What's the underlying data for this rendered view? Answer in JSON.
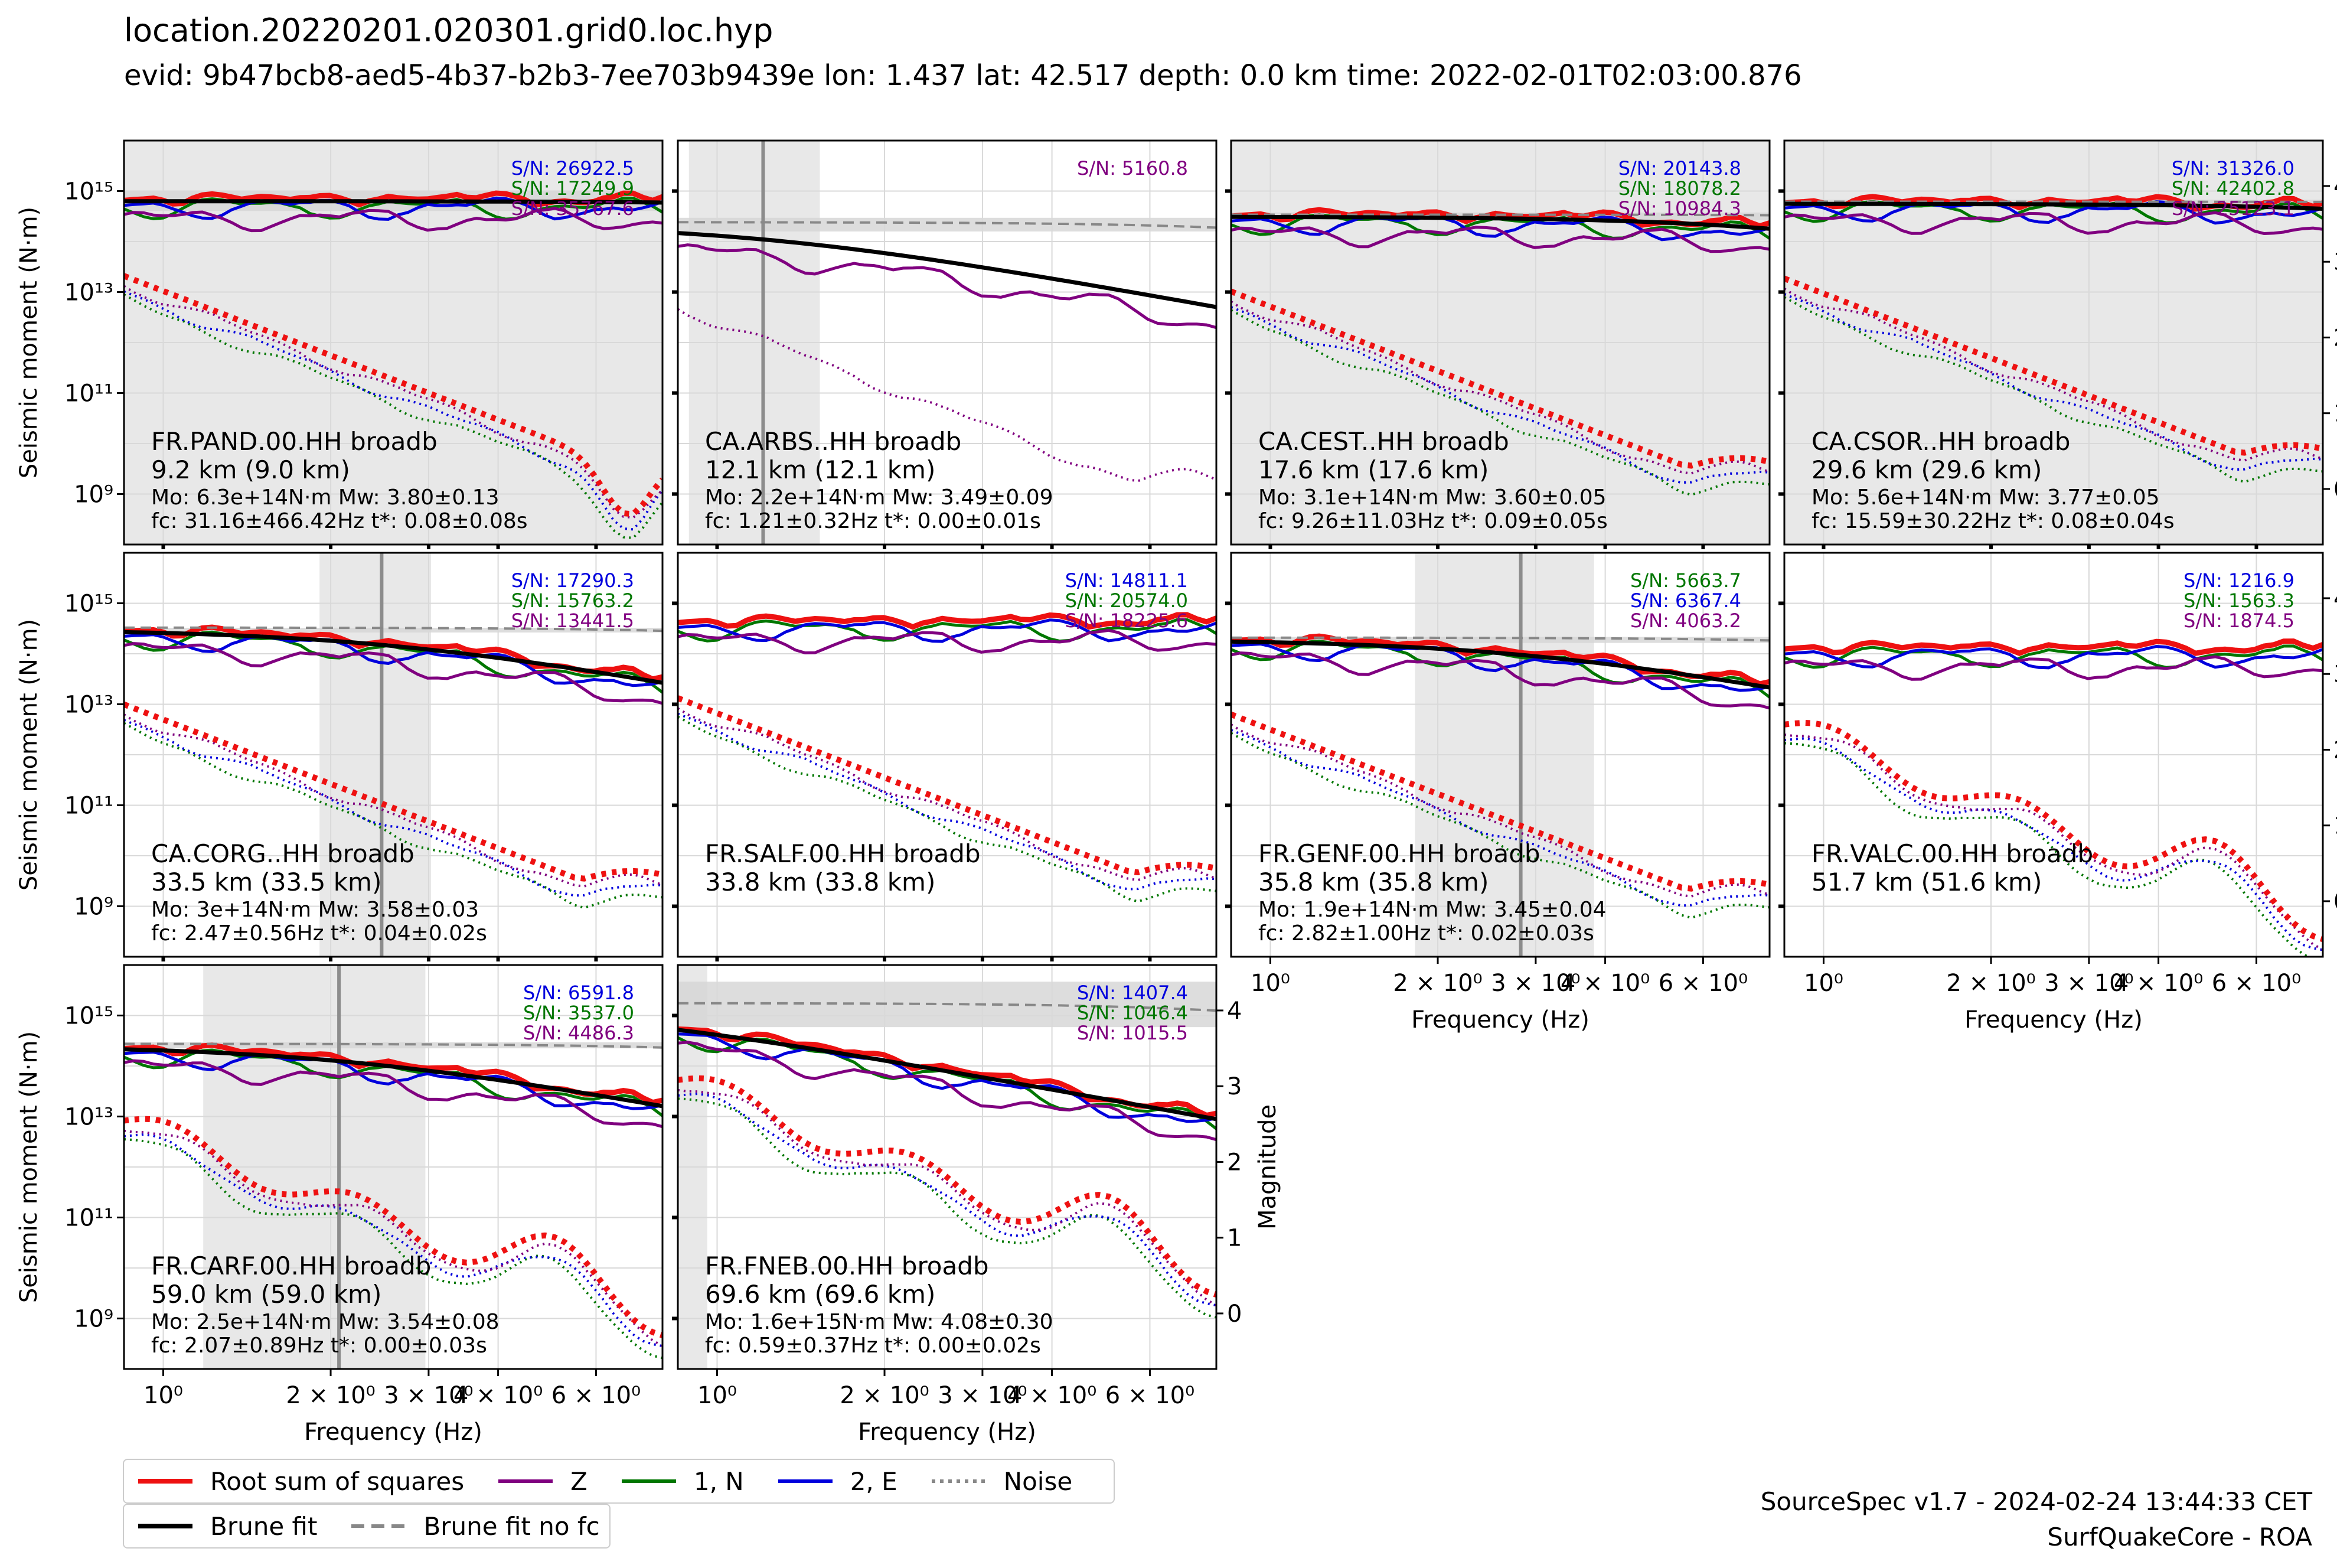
{
  "header": {
    "title": "location.20220201.020301.grid0.loc.hyp",
    "subtitle": "evid: 9b47bcb8-aed5-4b37-b2b3-7ee703b9439e lon: 1.437 lat: 42.517 depth: 0.0 km time: 2022-02-01T02:03:00.876"
  },
  "footer": {
    "line1": "SourceSpec v1.7 - 2024-02-24 13:44:33 CET",
    "line2": "SurfQuakeCore - ROA"
  },
  "colors": {
    "rss": "#ee1111",
    "z": "#800080",
    "n": "#007700",
    "e": "#0000dd",
    "brune": "#000000",
    "brune_nofc": "#888888",
    "grid": "#d9d9d9",
    "band": "#e8e8e8"
  },
  "legend": {
    "rss": "Root sum of squares",
    "z": "Z",
    "n": "1, N",
    "e": "2, E",
    "noise": "Noise",
    "brune": "Brune fit",
    "brune_nofc": "Brune fit no fc"
  },
  "axes_text": {
    "ylabel": "Seismic moment (N·m)",
    "ylabel_right": "Magnitude",
    "xlabel": "Frequency (Hz)",
    "xticks": [
      "10⁰",
      "2 × 10⁰",
      "3 × 10⁰",
      "4 × 10⁰",
      "6 × 10⁰"
    ],
    "yticks": [
      "10¹⁵",
      "10¹³",
      "10¹¹",
      "10⁹"
    ],
    "mag_ticks": [
      "4",
      "3",
      "2",
      "1",
      "0"
    ]
  },
  "chart_data": [
    {
      "type": "line",
      "station": "FR.PAND.00.HH broadb",
      "distance": "9.2 km (9.0 km)",
      "params1": "Mo: 6.3e+14N·m Mw: 3.80±0.13",
      "params2": "fc: 31.16±466.42Hz t*: 0.08±0.08s",
      "sn": [
        {
          "text": "S/N: 26922.5",
          "color": "#0000dd"
        },
        {
          "text": "S/N: 17249.9",
          "color": "#007700"
        },
        {
          "text": "S/N: 35767.6",
          "color": "#800080"
        }
      ],
      "mo": 630000000000000.0,
      "mw": 3.8,
      "fc": 31.16,
      "fc_range": null,
      "no_fc_curve": false,
      "mag_band": [
        3.67,
        3.93
      ],
      "noise_tail": "dip",
      "xlim": [
        0.85,
        7.9
      ],
      "ylim": [
        100000000.0,
        1e+16
      ]
    },
    {
      "type": "line",
      "station": "CA.ARBS..HH broadb",
      "distance": "12.1 km (12.1 km)",
      "params1": "Mo: 2.2e+14N·m Mw: 3.49±0.09",
      "params2": "fc: 1.21±0.32Hz t*: 0.00±0.01s",
      "sn": [
        {
          "text": "S/N: 5160.8",
          "color": "#800080"
        }
      ],
      "mo": 220000000000000.0,
      "mw": 3.49,
      "fc": 1.21,
      "fc_range": [
        0.89,
        1.53
      ],
      "no_fc_curve": true,
      "mag_band": [
        3.4,
        3.58
      ],
      "noise_tail": "flat",
      "components": "z_only",
      "xlim": [
        0.85,
        7.9
      ],
      "ylim": [
        100000000.0,
        1e+16
      ]
    },
    {
      "type": "line",
      "station": "CA.CEST..HH broadb",
      "distance": "17.6 km (17.6 km)",
      "params1": "Mo: 3.1e+14N·m Mw: 3.60±0.05",
      "params2": "fc: 9.26±11.03Hz t*: 0.09±0.05s",
      "sn": [
        {
          "text": "S/N: 20143.8",
          "color": "#0000dd"
        },
        {
          "text": "S/N: 18078.2",
          "color": "#007700"
        },
        {
          "text": "S/N: 10984.3",
          "color": "#800080"
        }
      ],
      "mo": 310000000000000.0,
      "mw": 3.6,
      "fc": 9.26,
      "fc_range": null,
      "no_fc_curve": true,
      "mag_band": [
        3.55,
        3.65
      ],
      "noise_tail": "flat",
      "xlim": [
        0.85,
        7.9
      ],
      "ylim": [
        100000000.0,
        1e+16
      ]
    },
    {
      "type": "line",
      "station": "CA.CSOR..HH broadb",
      "distance": "29.6 km (29.6 km)",
      "params1": "Mo: 5.6e+14N·m Mw: 3.77±0.05",
      "params2": "fc: 15.59±30.22Hz t*: 0.08±0.04s",
      "sn": [
        {
          "text": "S/N: 31326.0",
          "color": "#0000dd"
        },
        {
          "text": "S/N: 42402.8",
          "color": "#007700"
        },
        {
          "text": "S/N: 25123.1",
          "color": "#800080"
        }
      ],
      "mo": 560000000000000.0,
      "mw": 3.77,
      "fc": 15.59,
      "fc_range": null,
      "no_fc_curve": true,
      "mag_band": [
        3.72,
        3.82
      ],
      "noise_tail": "flat",
      "xlim": [
        0.85,
        7.9
      ],
      "ylim": [
        100000000.0,
        1e+16
      ]
    },
    {
      "type": "line",
      "station": "CA.CORG..HH broadb",
      "distance": "33.5 km (33.5 km)",
      "params1": "Mo: 3e+14N·m Mw: 3.58±0.03",
      "params2": "fc: 2.47±0.56Hz t*: 0.04±0.02s",
      "sn": [
        {
          "text": "S/N: 17290.3",
          "color": "#0000dd"
        },
        {
          "text": "S/N: 15763.2",
          "color": "#007700"
        },
        {
          "text": "S/N: 13441.5",
          "color": "#800080"
        }
      ],
      "mo": 300000000000000.0,
      "mw": 3.58,
      "fc": 2.47,
      "fc_range": [
        1.91,
        3.03
      ],
      "no_fc_curve": true,
      "mag_band": [
        3.55,
        3.61
      ],
      "noise_tail": "flat",
      "xlim": [
        0.85,
        7.9
      ],
      "ylim": [
        100000000.0,
        1e+16
      ]
    },
    {
      "type": "line",
      "station": "FR.SALF.00.HH broadb",
      "distance": "33.8 km (33.8 km)",
      "params1": "",
      "params2": "",
      "sn": [
        {
          "text": "S/N: 14811.1",
          "color": "#0000dd"
        },
        {
          "text": "S/N: 20574.0",
          "color": "#007700"
        },
        {
          "text": "S/N: 18225.6",
          "color": "#800080"
        }
      ],
      "mo": 400000000000000.0,
      "mw": null,
      "fc": null,
      "fc_range": null,
      "no_fc_curve": false,
      "mag_band": null,
      "noise_tail": "flat",
      "xlim": [
        0.85,
        7.9
      ],
      "ylim": [
        100000000.0,
        1e+16
      ]
    },
    {
      "type": "line",
      "station": "FR.GENF.00.HH broadb",
      "distance": "35.8 km (35.8 km)",
      "params1": "Mo: 1.9e+14N·m Mw: 3.45±0.04",
      "params2": "fc: 2.82±1.00Hz t*: 0.02±0.03s",
      "sn": [
        {
          "text": "S/N: 5663.7",
          "color": "#007700"
        },
        {
          "text": "S/N: 6367.4",
          "color": "#0000dd"
        },
        {
          "text": "S/N: 4063.2",
          "color": "#800080"
        }
      ],
      "mo": 190000000000000.0,
      "mw": 3.45,
      "fc": 2.82,
      "fc_range": [
        1.82,
        3.82
      ],
      "no_fc_curve": true,
      "mag_band": [
        3.41,
        3.49
      ],
      "noise_tail": "flat",
      "xlim": [
        0.85,
        7.9
      ],
      "ylim": [
        100000000.0,
        1e+16
      ]
    },
    {
      "type": "line",
      "station": "FR.VALC.00.HH broadb",
      "distance": "51.7 km (51.6 km)",
      "params1": "",
      "params2": "",
      "sn": [
        {
          "text": "S/N: 1216.9",
          "color": "#0000dd"
        },
        {
          "text": "S/N: 1563.3",
          "color": "#007700"
        },
        {
          "text": "S/N: 1874.5",
          "color": "#800080"
        }
      ],
      "mo": 120000000000000.0,
      "mw": null,
      "fc": null,
      "fc_range": null,
      "no_fc_curve": false,
      "mag_band": null,
      "noise_tail": "bump",
      "xlim": [
        0.85,
        7.9
      ],
      "ylim": [
        100000000.0,
        1e+16
      ]
    },
    {
      "type": "line",
      "station": "FR.CARF.00.HH broadb",
      "distance": "59.0 km (59.0 km)",
      "params1": "Mo: 2.5e+14N·m Mw: 3.54±0.08",
      "params2": "fc: 2.07±0.89Hz t*: 0.00±0.03s",
      "sn": [
        {
          "text": "S/N: 6591.8",
          "color": "#0000dd"
        },
        {
          "text": "S/N: 3537.0",
          "color": "#007700"
        },
        {
          "text": "S/N: 4486.3",
          "color": "#800080"
        }
      ],
      "mo": 250000000000000.0,
      "mw": 3.54,
      "fc": 2.07,
      "fc_range": [
        1.18,
        2.96
      ],
      "no_fc_curve": true,
      "mag_band": [
        3.5,
        3.58
      ],
      "noise_tail": "bump",
      "xlim": [
        0.85,
        7.9
      ],
      "ylim": [
        100000000.0,
        1e+16
      ]
    },
    {
      "type": "line",
      "station": "FR.FNEB.00.HH broadb",
      "distance": "69.6 km (69.6 km)",
      "params1": "Mo: 1.6e+15N·m Mw: 4.08±0.30",
      "params2": "fc: 0.59±0.37Hz t*: 0.00±0.02s",
      "sn": [
        {
          "text": "S/N: 1407.4",
          "color": "#0000dd"
        },
        {
          "text": "S/N: 1046.4",
          "color": "#007700"
        },
        {
          "text": "S/N: 1015.5",
          "color": "#800080"
        }
      ],
      "mo": 1600000000000000.0,
      "mw": 4.08,
      "fc": 0.59,
      "fc_range": [
        0.22,
        0.96
      ],
      "no_fc_curve": true,
      "mag_band": [
        3.78,
        4.38
      ],
      "noise_tail": "bump",
      "xlim": [
        0.85,
        7.9
      ],
      "ylim": [
        100000000.0,
        1e+16
      ]
    }
  ]
}
